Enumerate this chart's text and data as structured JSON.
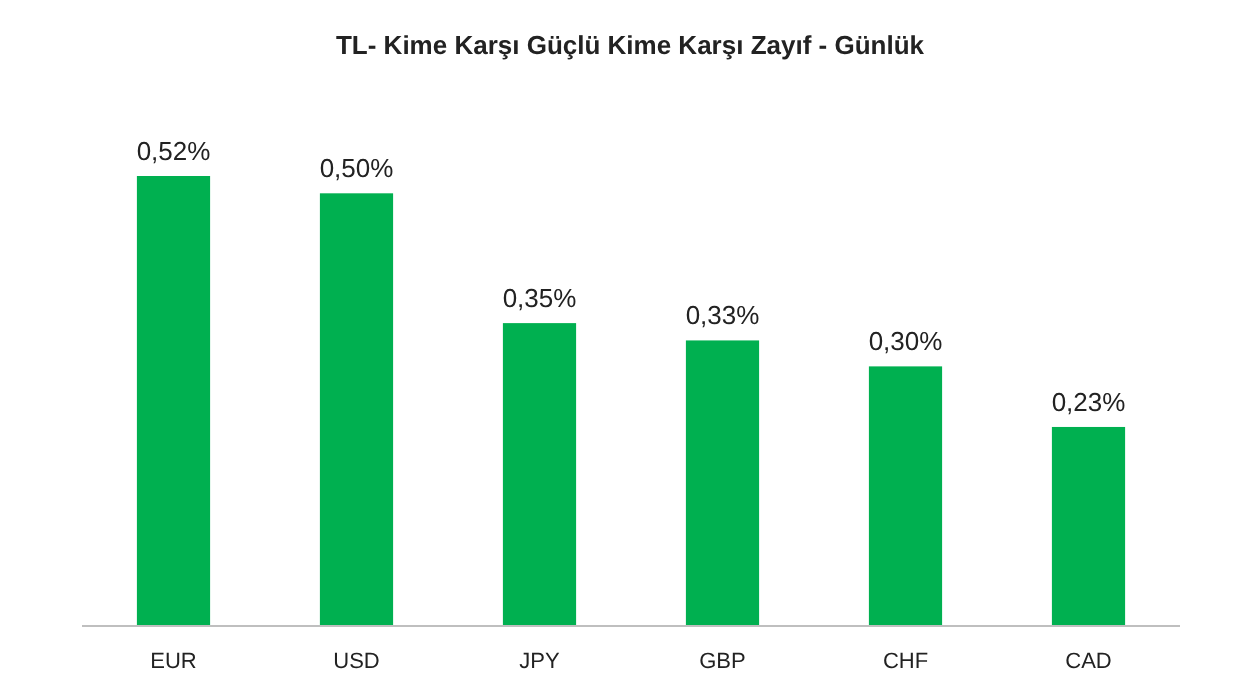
{
  "chart_data": {
    "type": "bar",
    "title": "TL- Kime Karşı Güçlü Kime Karşı Zayıf - Günlük",
    "categories": [
      "EUR",
      "USD",
      "JPY",
      "GBP",
      "CHF",
      "CAD"
    ],
    "values": [
      0.52,
      0.5,
      0.35,
      0.33,
      0.3,
      0.23
    ],
    "value_labels": [
      "0,52%",
      "0,50%",
      "0,35%",
      "0,33%",
      "0,30%",
      "0,23%"
    ],
    "color": "#00b050"
  }
}
